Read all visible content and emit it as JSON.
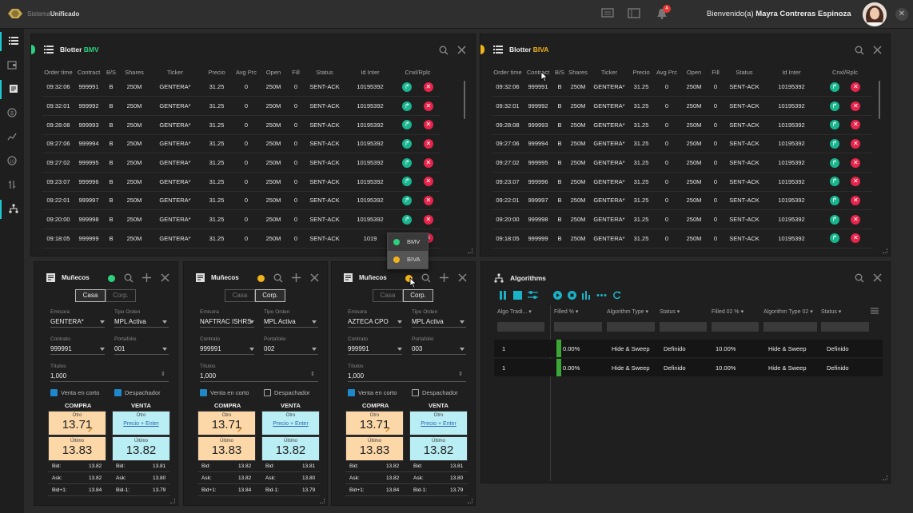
{
  "app": {
    "brand_prefix": "Sistema",
    "brand_name": "Unificado",
    "notification_count": "4",
    "welcome_label": "Bienvenido(a)",
    "user_name": "Mayra Contreras Espinoza"
  },
  "blotter_columns": [
    "Order time",
    "Contract",
    "B/S",
    "Shares",
    "Ticker",
    "Precio",
    "Avg Prc",
    "Open",
    "Fill",
    "Status",
    "Id Inter",
    "Cnxl/Rplc"
  ],
  "blotter_bmv": {
    "title_prefix": "Blotter ",
    "title_market": "BMV",
    "rows": [
      {
        "time": "09:32:06",
        "contract": "999991",
        "bs": "B",
        "shares": "250M",
        "ticker": "GENTERA*",
        "price": "31.25",
        "avg": "0",
        "open": "250M",
        "fill": "0",
        "status": "SENT-ACK",
        "id": "10195392"
      },
      {
        "time": "09:32:01",
        "contract": "999992",
        "bs": "B",
        "shares": "250M",
        "ticker": "GENTERA*",
        "price": "31.25",
        "avg": "0",
        "open": "250M",
        "fill": "0",
        "status": "SENT-ACK",
        "id": "10195392"
      },
      {
        "time": "09:28:08",
        "contract": "999993",
        "bs": "B",
        "shares": "250M",
        "ticker": "GENTERA*",
        "price": "31.25",
        "avg": "0",
        "open": "250M",
        "fill": "0",
        "status": "SENT-ACK",
        "id": "10195392"
      },
      {
        "time": "09:27:06",
        "contract": "999994",
        "bs": "B",
        "shares": "250M",
        "ticker": "GENTERA*",
        "price": "31.25",
        "avg": "0",
        "open": "250M",
        "fill": "0",
        "status": "SENT-ACK",
        "id": "10195392"
      },
      {
        "time": "09:27:02",
        "contract": "999995",
        "bs": "B",
        "shares": "250M",
        "ticker": "GENTERA*",
        "price": "31.25",
        "avg": "0",
        "open": "250M",
        "fill": "0",
        "status": "SENT-ACK",
        "id": "10195392"
      },
      {
        "time": "09:23:07",
        "contract": "999996",
        "bs": "B",
        "shares": "250M",
        "ticker": "GENTERA*",
        "price": "31.25",
        "avg": "0",
        "open": "250M",
        "fill": "0",
        "status": "SENT-ACK",
        "id": "10195392"
      },
      {
        "time": "09:22:01",
        "contract": "999997",
        "bs": "B",
        "shares": "250M",
        "ticker": "GENTERA*",
        "price": "31.25",
        "avg": "0",
        "open": "250M",
        "fill": "0",
        "status": "SENT-ACK",
        "id": "10195392"
      },
      {
        "time": "09:20:00",
        "contract": "999998",
        "bs": "B",
        "shares": "250M",
        "ticker": "GENTERA*",
        "price": "31.25",
        "avg": "0",
        "open": "250M",
        "fill": "0",
        "status": "SENT-ACK",
        "id": "10195392"
      },
      {
        "time": "09:18:05",
        "contract": "999999",
        "bs": "B",
        "shares": "250M",
        "ticker": "GENTERA*",
        "price": "31.25",
        "avg": "0",
        "open": "250M",
        "fill": "0",
        "status": "SENT-ACK",
        "id": "1019"
      }
    ]
  },
  "blotter_biva": {
    "title_prefix": "Blotter ",
    "title_market": "BIVA",
    "rows": [
      {
        "time": "09:32:06",
        "contract": "999991",
        "bs": "B",
        "shares": "250M",
        "ticker": "GENTERA*",
        "price": "31.25",
        "avg": "0",
        "open": "250M",
        "fill": "0",
        "status": "SENT-ACK",
        "id": "10195392"
      },
      {
        "time": "09:32:01",
        "contract": "999992",
        "bs": "B",
        "shares": "250M",
        "ticker": "GENTERA*",
        "price": "31.25",
        "avg": "0",
        "open": "250M",
        "fill": "0",
        "status": "SENT-ACK",
        "id": "10195392"
      },
      {
        "time": "09:28:08",
        "contract": "999993",
        "bs": "B",
        "shares": "250M",
        "ticker": "GENTERA*",
        "price": "31.25",
        "avg": "0",
        "open": "250M",
        "fill": "0",
        "status": "SENT-ACK",
        "id": "10195392"
      },
      {
        "time": "09:27:06",
        "contract": "999994",
        "bs": "B",
        "shares": "250M",
        "ticker": "GENTERA*",
        "price": "31.25",
        "avg": "0",
        "open": "250M",
        "fill": "0",
        "status": "SENT-ACK",
        "id": "10195392"
      },
      {
        "time": "09:27:02",
        "contract": "999995",
        "bs": "B",
        "shares": "250M",
        "ticker": "GENTERA*",
        "price": "31.25",
        "avg": "0",
        "open": "250M",
        "fill": "0",
        "status": "SENT-ACK",
        "id": "10195392"
      },
      {
        "time": "09:23:07",
        "contract": "999996",
        "bs": "B",
        "shares": "250M",
        "ticker": "GENTERA*",
        "price": "31.25",
        "avg": "0",
        "open": "250M",
        "fill": "0",
        "status": "SENT-ACK",
        "id": "10195392"
      },
      {
        "time": "09:22:01",
        "contract": "999997",
        "bs": "B",
        "shares": "250M",
        "ticker": "GENTERA*",
        "price": "31.25",
        "avg": "0",
        "open": "250M",
        "fill": "0",
        "status": "SENT-ACK",
        "id": "10195392"
      },
      {
        "time": "09:20:00",
        "contract": "999998",
        "bs": "B",
        "shares": "250M",
        "ticker": "GENTERA*",
        "price": "31.25",
        "avg": "0",
        "open": "250M",
        "fill": "0",
        "status": "SENT-ACK",
        "id": "10195392"
      },
      {
        "time": "09:18:05",
        "contract": "999999",
        "bs": "B",
        "shares": "250M",
        "ticker": "GENTERA*",
        "price": "31.25",
        "avg": "0",
        "open": "250M",
        "fill": "0",
        "status": "SENT-ACK",
        "id": "10195392"
      }
    ]
  },
  "market_dropdown": {
    "options": [
      "BMV",
      "BIVA"
    ],
    "selected": "BIVA"
  },
  "colors": {
    "bmv": "#2bd17e",
    "biva": "#f2b21b"
  },
  "labels": {
    "munecos_title": "Muñecos",
    "casa": "Casa",
    "corp": "Corp.",
    "emisora": "Emisora",
    "tipo_orden": "Tipo Orden",
    "contrato": "Contrato",
    "portafolio": "Portafolio",
    "titulos": "Títulos",
    "venta_corto": "Venta en corto",
    "despachador": "Despachador",
    "compra": "COMPRA",
    "venta": "VENTA",
    "otro": "Otro",
    "ultimo": "Último",
    "precio_enter": "Precio + Enter",
    "bid": "Bid:",
    "ask": "Ask:",
    "bid1": "Bid+1:",
    "bid_1": "Bid-1:"
  },
  "munecos": [
    {
      "market_color": "#2bd17e",
      "mode": "Casa",
      "emisora": "GENTERA*",
      "tipo_orden": "MPL Activa",
      "contrato": "999991",
      "portafolio": "001",
      "titulos": "1,000",
      "venta_corto": true,
      "despachador": true,
      "buy_otro": "13.71",
      "buy_ultimo": "13.83",
      "sell_ultimo": "13.82",
      "bid_buy": "13.82",
      "ask_buy": "13.82",
      "bid1_buy": "13.84",
      "bid_sell": "13.81",
      "ask_sell": "13.80",
      "bid_1_sell": "13.79"
    },
    {
      "market_color": "#f2b21b",
      "mode": "Corp.",
      "emisora": "NAFTRAC ISHRS",
      "tipo_orden": "MPL Activa",
      "contrato": "999991",
      "portafolio": "002",
      "titulos": "1,000",
      "venta_corto": true,
      "despachador": false,
      "buy_otro": "13.71",
      "buy_ultimo": "13.83",
      "sell_ultimo": "13.82",
      "bid_buy": "13.82",
      "ask_buy": "13.82",
      "bid1_buy": "13.84",
      "bid_sell": "13.81",
      "ask_sell": "13.80",
      "bid_1_sell": "13.79"
    },
    {
      "market_color": "#f2b21b",
      "mode": "Corp.",
      "emisora": "AZTECA CPO",
      "tipo_orden": "MPL Activa",
      "contrato": "999991",
      "portafolio": "003",
      "titulos": "1,000",
      "venta_corto": true,
      "despachador": false,
      "buy_otro": "13.71",
      "buy_ultimo": "13.83",
      "sell_ultimo": "13.82",
      "bid_buy": "13.82",
      "ask_buy": "13.82",
      "bid1_buy": "13.84",
      "bid_sell": "13.81",
      "ask_sell": "13.80",
      "bid_1_sell": "13.79"
    }
  ],
  "algorithms": {
    "title": "Algorithms",
    "columns": [
      "Algo Tradi...",
      "Filled %",
      "Algorithm Type",
      "Status",
      "Filled 02 %",
      "Algorithm Type 02",
      "Status"
    ],
    "rows": [
      {
        "algo": "1",
        "filled": "0.00%",
        "type": "Hide & Sweep",
        "status": "Definido",
        "filled02": "10.00%",
        "type02": "Hide & Sweep",
        "status02": "Definido"
      },
      {
        "algo": "1",
        "filled": "0.00%",
        "type": "Hide & Sweep",
        "status": "Definido",
        "filled02": "10.00%",
        "type02": "Hide & Sweep",
        "status02": "Definido"
      }
    ]
  }
}
